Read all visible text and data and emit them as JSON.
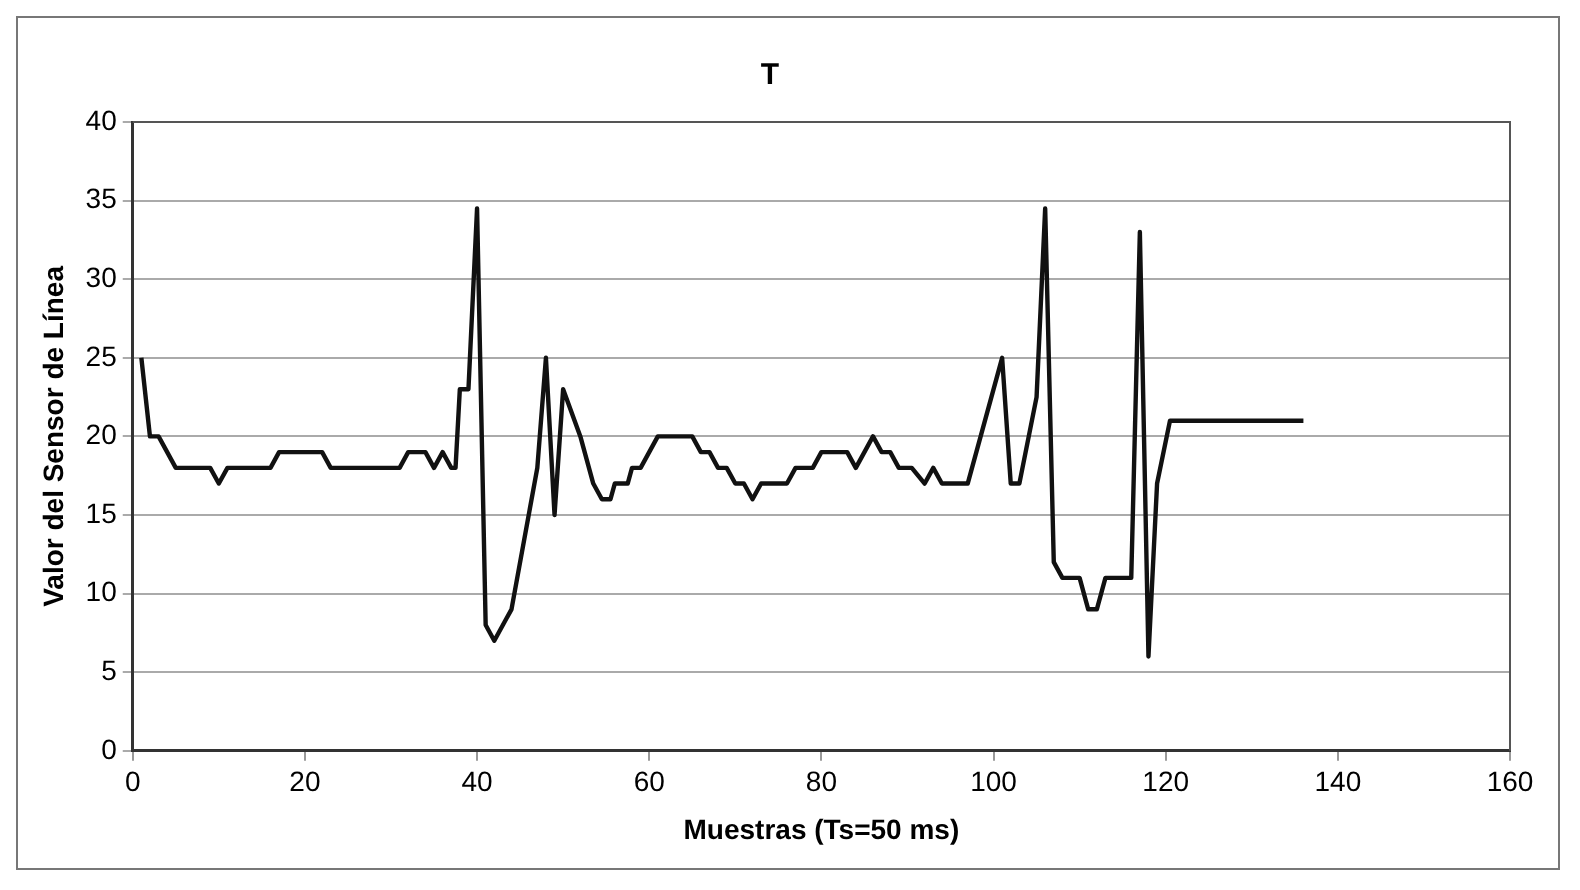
{
  "chart_data": {
    "type": "line",
    "title": "T",
    "xlabel": "Muestras (Ts=50 ms)",
    "ylabel": "Valor del Sensor de Línea",
    "x": [
      1,
      2,
      3,
      5,
      9,
      10,
      11,
      16,
      17,
      22,
      23,
      31,
      32,
      34,
      35,
      36,
      37,
      37.5,
      38,
      39,
      40,
      41,
      42,
      44,
      47,
      48,
      49,
      50,
      52,
      53.5,
      54.5,
      55.5,
      56,
      57.5,
      58,
      59,
      61,
      65,
      66,
      67,
      68,
      69,
      70,
      71,
      72,
      73,
      76,
      77,
      79,
      80,
      83,
      84,
      86,
      87,
      88,
      89,
      90.5,
      92,
      93,
      94,
      97,
      101,
      102,
      103,
      105,
      106,
      107,
      108,
      110,
      111,
      112,
      113,
      116,
      117,
      118,
      119,
      120.5,
      136
    ],
    "values": [
      25,
      20,
      20,
      18,
      18,
      17,
      18,
      18,
      19,
      19,
      18,
      18,
      19,
      19,
      18,
      19,
      18,
      18,
      23,
      23,
      34.5,
      8,
      7,
      9,
      18,
      25,
      15,
      23,
      20,
      17,
      16,
      16,
      17,
      17,
      18,
      18,
      20,
      20,
      19,
      19,
      18,
      18,
      17,
      17,
      16,
      17,
      17,
      18,
      18,
      19,
      19,
      18,
      20,
      19,
      19,
      18,
      18,
      17,
      18,
      17,
      17,
      25,
      17,
      17,
      22.5,
      34.5,
      12,
      11,
      11,
      9,
      9,
      11,
      11,
      33,
      6,
      17,
      21,
      21
    ],
    "color": "#111111",
    "xlim": [
      0,
      160
    ],
    "xticks": [
      0,
      20,
      40,
      60,
      80,
      100,
      120,
      140,
      160
    ],
    "ylim": [
      0,
      40
    ],
    "yticks": [
      0,
      5,
      10,
      15,
      20,
      25,
      30,
      35,
      40
    ],
    "grid": "y",
    "legend": false,
    "marker": "none",
    "line_style": "solid"
  }
}
